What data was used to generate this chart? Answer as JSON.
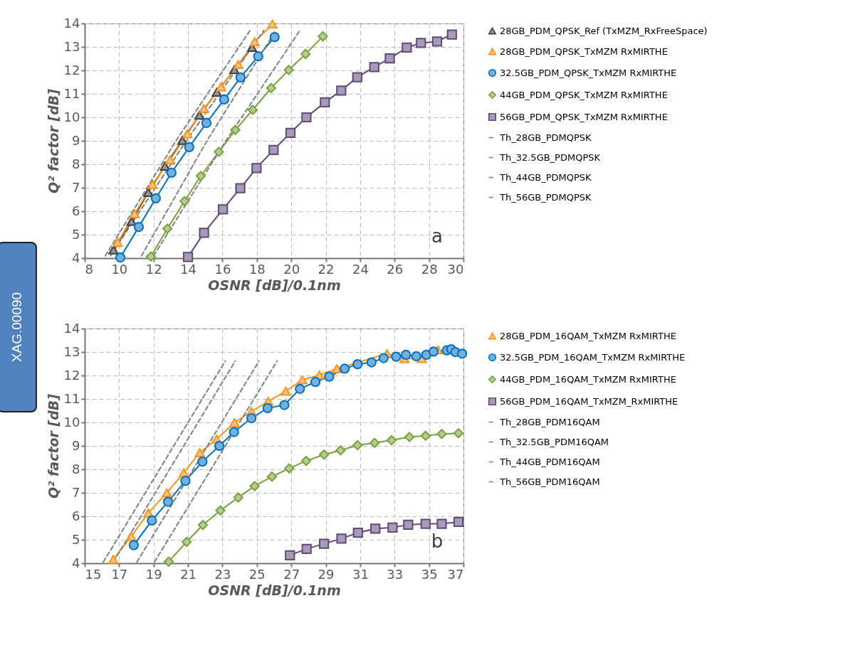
{
  "chart_data": [
    {
      "type": "line",
      "xlabel": "OSNR [dB]/0.1nm",
      "ylabel": "Q² factor [dB]",
      "xlim": [
        8,
        30
      ],
      "ylim": [
        4,
        14
      ],
      "xticks": [
        8,
        10,
        12,
        14,
        16,
        18,
        20,
        22,
        24,
        26,
        28,
        30
      ],
      "yticks": [
        4,
        5,
        6,
        7,
        8,
        9,
        10,
        11,
        12,
        13,
        14
      ],
      "grid": true,
      "legend": "right",
      "annotations": [
        "a",
        "XAG.00090"
      ],
      "series": [
        {
          "name": "28GB_PDM_QPSK_Ref (TxMZM_RxFreeSpace)",
          "color": "#404040",
          "marker": "triangle",
          "line_style": "solid",
          "x": [
            9.67,
            10.72,
            11.69,
            12.66,
            13.67,
            14.66,
            15.67,
            16.69,
            17.72
          ],
          "values": [
            4.35,
            5.57,
            6.8,
            7.92,
            9.02,
            10.09,
            11.07,
            12.03,
            12.98
          ]
        },
        {
          "name": "28GB_PDM_QPSK_TxMZM RxMIRTHE",
          "color": "#f7941d",
          "marker": "triangle",
          "line_style": "solid",
          "x": [
            9.91,
            10.9,
            11.94,
            12.96,
            13.96,
            14.92,
            15.92,
            16.92,
            17.87,
            18.9
          ],
          "values": [
            4.67,
            5.89,
            7.14,
            8.19,
            9.3,
            10.37,
            11.3,
            12.25,
            13.22,
            13.97
          ]
        },
        {
          "name": "32.5GB_PDM_QPSK_TxMZM RxMIRTHE",
          "color": "#0070c0",
          "marker": "circle",
          "line_style": "solid",
          "x": [
            10.07,
            11.14,
            12.13,
            13.04,
            14.07,
            15.07,
            16.1,
            17.05,
            18.08,
            19.03
          ],
          "values": [
            4.03,
            5.33,
            6.55,
            7.64,
            8.73,
            9.76,
            10.76,
            11.7,
            12.6,
            13.42
          ]
        },
        {
          "name": "44GB_PDM_QPSK_TxMZM RxMIRTHE",
          "color": "#77a23a",
          "marker": "diamond",
          "line_style": "solid",
          "x": [
            11.84,
            12.8,
            13.8,
            14.74,
            15.79,
            16.75,
            17.76,
            18.83,
            19.85,
            20.83,
            21.83
          ],
          "values": [
            4.07,
            5.26,
            6.43,
            7.5,
            8.53,
            9.46,
            10.32,
            11.25,
            12.02,
            12.7,
            13.45
          ]
        },
        {
          "name": "56GB_PDM_QPSK_TxMZM RxMIRTHE",
          "color": "#604a7b",
          "marker": "square",
          "line_style": "solid",
          "x": [
            14.0,
            14.93,
            16.03,
            17.04,
            17.98,
            18.97,
            19.95,
            20.88,
            21.95,
            22.9,
            23.83,
            24.82,
            25.72,
            26.71,
            27.53,
            28.47,
            29.33
          ],
          "values": [
            4.05,
            5.08,
            6.08,
            6.98,
            7.84,
            8.61,
            9.34,
            10.0,
            10.64,
            11.14,
            11.71,
            12.14,
            12.51,
            12.97,
            13.17,
            13.23,
            13.53
          ]
        },
        {
          "name": "Th_28GB_PDMQPSK",
          "color": "#808080",
          "marker": "none",
          "line_style": "dashed",
          "x": [
            9.2,
            13.3,
            17.6
          ],
          "values": [
            4.1,
            9.0,
            13.7
          ]
        },
        {
          "name": "Th_32.5GB_PDMQPSK",
          "color": "#808080",
          "marker": "none",
          "line_style": "dashed",
          "x": [
            9.5,
            13.9,
            18.4
          ],
          "values": [
            4.1,
            9.0,
            13.7
          ]
        },
        {
          "name": "Th_44GB_PDMQPSK",
          "color": "#808080",
          "marker": "none",
          "line_style": "dashed",
          "x": [
            11.3,
            15.1,
            19.1
          ],
          "values": [
            4.1,
            9.0,
            13.7
          ]
        },
        {
          "name": "Th_56GB_PDMQPSK",
          "color": "#808080",
          "marker": "none",
          "line_style": "dashed",
          "x": [
            12.0,
            16.2,
            20.5
          ],
          "values": [
            4.1,
            9.0,
            13.7
          ]
        }
      ]
    },
    {
      "type": "line",
      "xlabel": "OSNR [dB]/0.1nm",
      "ylabel": "Q² factor [dB]",
      "xlim": [
        15,
        37
      ],
      "ylim": [
        4,
        14
      ],
      "xticks": [
        15,
        17,
        19,
        21,
        23,
        25,
        27,
        29,
        31,
        33,
        35,
        37
      ],
      "yticks": [
        4,
        5,
        6,
        7,
        8,
        9,
        10,
        11,
        12,
        13,
        14
      ],
      "grid": true,
      "legend": "right",
      "annotations": [
        "b"
      ],
      "series": [
        {
          "name": "28GB_PDM_16QAM_TxMZM RxMIRTHE",
          "color": "#f7941d",
          "marker": "triangle",
          "line_style": "solid",
          "x": [
            16.66,
            17.7,
            18.69,
            19.77,
            20.75,
            21.68,
            22.66,
            23.7,
            24.68,
            25.66,
            26.68,
            27.64,
            28.63,
            29.64,
            32.56,
            33.57,
            34.58,
            35.52
          ],
          "values": [
            4.16,
            5.14,
            6.14,
            7.0,
            7.85,
            8.71,
            9.29,
            9.99,
            10.47,
            10.9,
            11.33,
            11.81,
            12.02,
            12.29,
            12.93,
            12.72,
            12.72,
            13.09
          ]
        },
        {
          "name": "32.5GB_PDM_16QAM_TxMZM RxMIRTHE",
          "color": "#0070c0",
          "marker": "circle",
          "line_style": "solid",
          "x": [
            17.85,
            18.9,
            19.84,
            20.85,
            21.84,
            22.82,
            23.67,
            24.68,
            25.62,
            26.6,
            27.5,
            28.4,
            29.2,
            30.1,
            30.85,
            31.66,
            32.36,
            33.09,
            33.66,
            34.26,
            34.84,
            35.26,
            36.03,
            36.29,
            36.53,
            36.92
          ],
          "values": [
            4.77,
            5.82,
            6.62,
            7.51,
            8.33,
            9.0,
            9.59,
            10.18,
            10.61,
            10.74,
            11.43,
            11.72,
            11.95,
            12.29,
            12.48,
            12.56,
            12.74,
            12.8,
            12.88,
            12.82,
            12.88,
            13.02,
            13.07,
            13.12,
            13.0,
            12.93
          ]
        },
        {
          "name": "44GB_PDM_16QAM_TxMZM RxMIRTHE",
          "color": "#77a23a",
          "marker": "diamond",
          "line_style": "solid",
          "x": [
            19.88,
            20.92,
            21.86,
            22.88,
            23.92,
            24.87,
            25.88,
            26.88,
            27.86,
            28.9,
            29.86,
            30.85,
            31.84,
            32.82,
            33.86,
            34.8,
            35.74,
            36.71
          ],
          "values": [
            4.07,
            4.91,
            5.63,
            6.25,
            6.8,
            7.29,
            7.69,
            8.04,
            8.36,
            8.63,
            8.81,
            9.03,
            9.13,
            9.24,
            9.38,
            9.43,
            9.51,
            9.54
          ]
        },
        {
          "name": "56GB_PDM_16QAM_TxMZM_RxMIRTHE",
          "color": "#604a7b",
          "marker": "square",
          "line_style": "solid",
          "x": [
            26.92,
            27.89,
            28.9,
            29.91,
            30.87,
            31.88,
            32.88,
            33.79,
            34.8,
            35.74,
            36.71
          ],
          "values": [
            4.34,
            4.61,
            4.83,
            5.05,
            5.3,
            5.47,
            5.52,
            5.64,
            5.68,
            5.68,
            5.76
          ]
        },
        {
          "name": "Th_28GB_PDM16QAM",
          "color": "#808080",
          "marker": "none",
          "line_style": "dashed",
          "x": [
            16.08,
            23.16
          ],
          "values": [
            4.05,
            12.61
          ]
        },
        {
          "name": "Th_32.5GB_PDM16QAM",
          "color": "#808080",
          "marker": "none",
          "line_style": "dashed",
          "x": [
            16.66,
            23.74
          ],
          "values": [
            4.05,
            12.61
          ]
        },
        {
          "name": "Th_44GB_PDM16QAM",
          "color": "#808080",
          "marker": "none",
          "line_style": "dashed",
          "x": [
            18.03,
            25.12
          ],
          "values": [
            4.05,
            12.61
          ]
        },
        {
          "name": "Th_56GB_PDM16QAM",
          "color": "#808080",
          "marker": "none",
          "line_style": "dashed",
          "x": [
            19.05,
            26.17
          ],
          "values": [
            4.05,
            12.61
          ]
        }
      ]
    }
  ]
}
